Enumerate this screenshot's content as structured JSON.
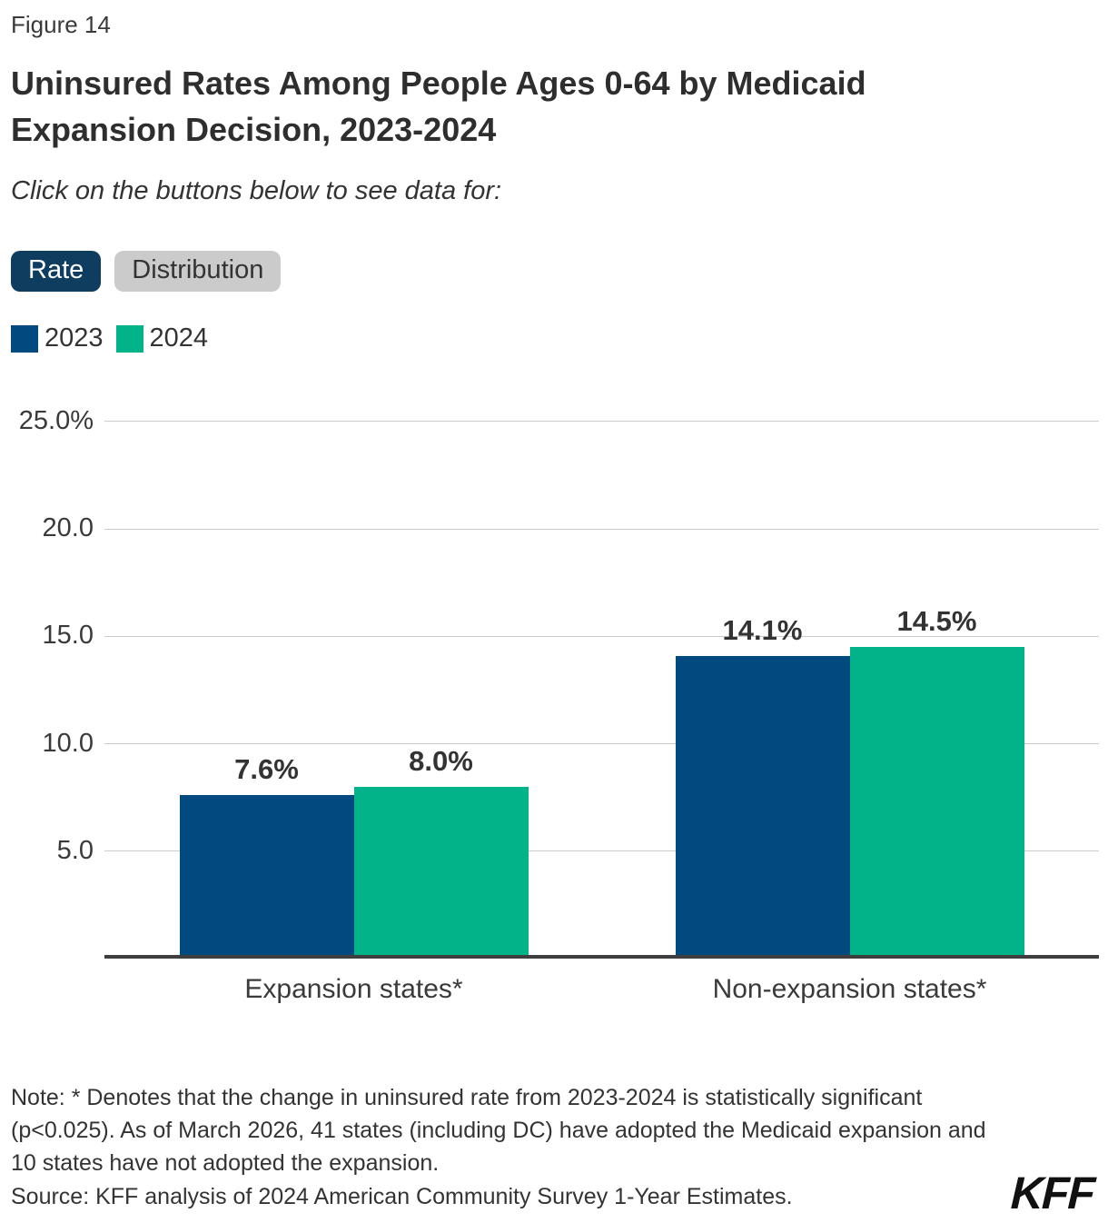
{
  "figure_label": "Figure 14",
  "title": "Uninsured Rates Among People Ages 0-64 by Medicaid Expansion Decision, 2023-2024",
  "subtitle": "Click on the buttons below to see data for:",
  "buttons": [
    {
      "label": "Rate",
      "active": true
    },
    {
      "label": "Distribution",
      "active": false
    }
  ],
  "legend": [
    {
      "label": "2023",
      "color": "#004a80"
    },
    {
      "label": "2024",
      "color": "#00b388"
    }
  ],
  "chart_data": {
    "type": "bar",
    "categories": [
      "Expansion states*",
      "Non-expansion states*"
    ],
    "series": [
      {
        "name": "2023",
        "color": "#004a80",
        "values": [
          7.6,
          14.1
        ],
        "value_labels": [
          "7.6%",
          "14.1%"
        ]
      },
      {
        "name": "2024",
        "color": "#00b388",
        "values": [
          8.0,
          14.5
        ],
        "value_labels": [
          "8.0%",
          "14.5%"
        ]
      }
    ],
    "title": "",
    "xlabel": "",
    "ylabel": "",
    "ylim": [
      0,
      25
    ],
    "yticks": [
      {
        "value": 5,
        "label": "5.0"
      },
      {
        "value": 10,
        "label": "10.0"
      },
      {
        "value": 15,
        "label": "15.0"
      },
      {
        "value": 20,
        "label": "20.0"
      },
      {
        "value": 25,
        "label": "25.0%"
      }
    ],
    "grid": true,
    "legend_position": "top-left"
  },
  "note": "Note: * Denotes that the change in uninsured rate from 2023-2024 is statistically significant (p<0.025). As of March 2026, 41 states (including DC) have adopted the Medicaid expansion and 10 states have not adopted the expansion.",
  "source": "Source: KFF analysis of 2024 American Community Survey 1-Year Estimates.",
  "logo_text": "KFF",
  "colors": {
    "bar_2023": "#004a80",
    "bar_2024": "#00b388",
    "active_button": "#0e3d60",
    "inactive_button": "#cbcbcb",
    "gridline": "#cccccc",
    "axis_line": "#3e3e3e",
    "text": "#333333"
  }
}
